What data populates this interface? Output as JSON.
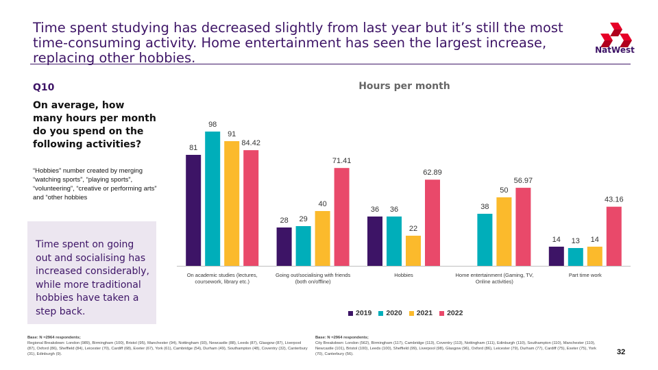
{
  "header": {
    "headline": "Time spent studying has decreased slightly from last year but it’s still the most time-consuming activity. Home entertainment has seen the largest increase, replacing other hobbies.",
    "brand": "NatWest"
  },
  "question": {
    "label": "Q10",
    "text": "On average, how many hours per month do you spend on the following activities?",
    "note": "“Hobbies” number created by merging “watching sports”, “playing sports”, “volunteering”, “creative or performing arts” and “other hobbies"
  },
  "callout": {
    "text": "Time spent on going out and socialising has increased considerably, while more traditional hobbies have taken a step back."
  },
  "chart_data": {
    "type": "bar",
    "title": "Hours per month",
    "xlabel": "",
    "ylabel": "",
    "categories": [
      [
        "On academic studies (lectures,",
        "coursework, library etc.)"
      ],
      [
        "Going out/socialising with friends",
        "(both on/offline)"
      ],
      [
        "Hobbies"
      ],
      [
        "Home entertainment (Gaming, TV,",
        "Online activities)"
      ],
      [
        "Part time work"
      ]
    ],
    "series": [
      {
        "name": "2019",
        "color": "#3d1466",
        "values": [
          81,
          28,
          36,
          null,
          14
        ],
        "labels": [
          "81",
          "28",
          "36",
          "",
          "14"
        ]
      },
      {
        "name": "2020",
        "color": "#00aeba",
        "values": [
          98,
          29,
          36,
          38,
          13
        ],
        "labels": [
          "98",
          "29",
          "36",
          "38",
          "13"
        ]
      },
      {
        "name": "2021",
        "color": "#fbba2c",
        "values": [
          91,
          40,
          22,
          50,
          14
        ],
        "labels": [
          "91",
          "40",
          "22",
          "50",
          "14"
        ]
      },
      {
        "name": "2022",
        "color": "#e9496a",
        "values": [
          84.42,
          71.41,
          62.89,
          56.97,
          43.16
        ],
        "labels": [
          "84.42",
          "71.41",
          "62.89",
          "56.97",
          "43.16"
        ]
      }
    ],
    "ylim": [
      0,
      100
    ],
    "grid": false,
    "legend": "bottom"
  },
  "footnotes": {
    "left_title": "Base: N =2964 respondents;",
    "left_text": "Regional Breakdown: London (989), Birmingham (100), Bristol (95), Manchester (94), Nottingham (93), Newcastle (88), Leeds (87), Glasgow (87), Liverpool (87), Oxford (86), Sheffield (84), Leicester (70), Cardiff (68), Exeter (67), York (61), Cambridge (54), Durham (49), Southampton (48), Coventry (32), Canterbury (31), Edinburgh (9).",
    "right_title": "Base: N =2964 respondents;",
    "right_text": "City Breakdown: London (562), Birmingham (117), Cambridge (113), Coventry (113), Nottingham (111), Edinburgh (110), Southampton (110), Manchester (110), Newcastle (101), Bristol (100), Leeds (100), Sheffield (99), Liverpool (98), Glasgow (96), Oxford (86), Leicester (79), Durham (77), Cardiff (75), Exeter (75), York (70), Canterbury (56)."
  },
  "page_number": "32"
}
